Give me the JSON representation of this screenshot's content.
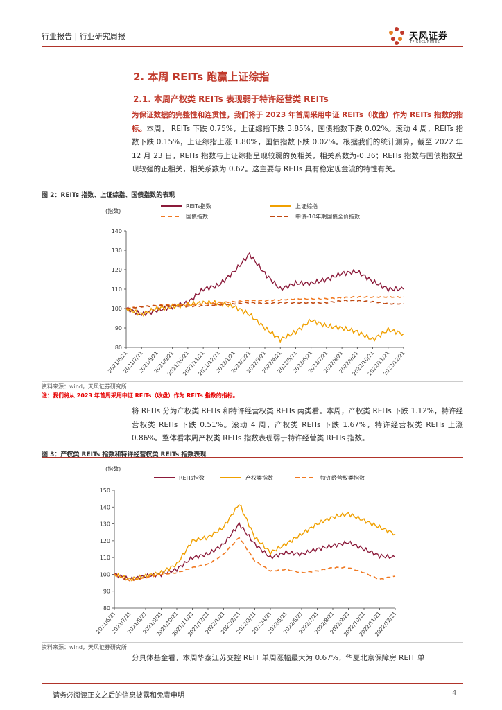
{
  "header": {
    "title": "行业报告 | 行业研究周报",
    "logo_cn": "天风证券",
    "logo_en": "TF SECURITIES"
  },
  "section": {
    "h2": "2. 本周 REITs 跑赢上证综指",
    "h3": "2.1. 本周产权类 REITs 表现弱于特许经营类 REITs"
  },
  "para1": {
    "highlight": "为保证数据的完整性和连贯性，我们将于 2023 年首周采用中证 REITs（收盘）作为 REITs 指数的指标。",
    "rest": "本周， REITs 下跌 0.75%，上证综指下跌 3.85%，国债指数下跌 0.02%。滚动 4 周，REITs 指数下跌 0.15%，上证综指上涨 1.80%，国债指数下跌 0.02%。根据我们的统计测算，截至 2022 年 12 月 23 日，REITs 指数与上证综指呈现较弱的负相关，相关系数为-0.36；REITs 指数与国债指数呈现较强的正相关，相关系数为 0.62。这主要与 REITs 具有稳定现金流的特性有关。"
  },
  "fig2": {
    "title": "图 2：REITs 指数、上证综指、国债指数的表现",
    "source": "资料来源：wind，天风证券研究所",
    "note": "注：我们将从 2023 年首周采用中证 REITs（收盘）作为 REITs 指数的指标。"
  },
  "para2": "将 REITs 分为产权类 REITs 和特许经营权类 REITs 两类看。本周，产权类 REITs 下跌 1.12%，特许经营权类 REITs 下跌 0.51%。滚动 4 周，产权类 REITs 下跌 1.67%，特许经营权类 REITs 上涨 0.86%。整体看本周产权类 REITs 指数表现弱于特许经营类 REITs 指数。",
  "fig3": {
    "title": "图 3：产权类 REITs 指数和特许经营权类 REITs 指数表现",
    "source": "资料来源：wind，天风证券研究所"
  },
  "para3": "分具体基金看，本周华泰江苏交控 REIT 单周涨幅最大为 0.67%，华夏北京保障房 REIT 单",
  "footer": {
    "disclaimer": "请务必阅读正文之后的信息披露和免责申明",
    "page": "4"
  },
  "colors": {
    "accent": "#c0392b",
    "reits": "#8b1a3a",
    "sse": "#f0a000",
    "bond": "#f07820",
    "cbond": "#c04810"
  },
  "chart_data": [
    {
      "type": "line",
      "ylabel": "(指数)",
      "ylim": [
        80,
        140
      ],
      "yticks": [
        80,
        90,
        100,
        110,
        120,
        130,
        140
      ],
      "categories": [
        "2021/6/21",
        "2021/7/21",
        "2021/8/21",
        "2021/9/21",
        "2021/10/21",
        "2021/11/21",
        "2021/12/21",
        "2022/1/21",
        "2022/2/21",
        "2022/3/21",
        "2022/4/21",
        "2022/5/21",
        "2022/6/21",
        "2022/7/21",
        "2022/8/21",
        "2022/9/21",
        "2022/10/21",
        "2022/11/21",
        "2022/12/21"
      ],
      "series": [
        {
          "name": "REITs指数",
          "style": "solid",
          "color": "#8b1a3a",
          "values": [
            100,
            97,
            99,
            101,
            103,
            110,
            112,
            119,
            128,
            118,
            110,
            113,
            113,
            115,
            118,
            119,
            114,
            110,
            110
          ]
        },
        {
          "name": "上证综指",
          "style": "solid",
          "color": "#f0a000",
          "values": [
            100,
            97,
            100,
            101,
            102,
            103,
            103,
            101,
            97,
            90,
            84,
            88,
            94,
            91,
            90,
            88,
            84,
            89,
            87
          ]
        },
        {
          "name": "国债指数",
          "style": "dashed",
          "color": "#f07820",
          "values": [
            100,
            101,
            101.5,
            102,
            102,
            102.5,
            103,
            103.5,
            104,
            104,
            104.5,
            105,
            105,
            105,
            105.5,
            106,
            106,
            106,
            106
          ]
        },
        {
          "name": "中债-10年期国债全价指数",
          "style": "dashed",
          "color": "#c04810",
          "values": [
            100,
            101,
            101.5,
            101.5,
            101,
            101.5,
            102,
            102.5,
            103,
            102.5,
            103,
            103,
            103,
            103,
            104,
            104,
            103.5,
            102.5,
            102.5
          ]
        }
      ]
    },
    {
      "type": "line",
      "ylabel": "(指数)",
      "ylim": [
        80,
        150
      ],
      "yticks": [
        80,
        90,
        100,
        110,
        120,
        130,
        140,
        150
      ],
      "categories": [
        "2021/6/21",
        "2021/7/21",
        "2021/8/21",
        "2021/9/21",
        "2021/10/21",
        "2021/11/21",
        "2021/12/21",
        "2022/1/21",
        "2022/2/21",
        "2022/3/21",
        "2022/4/21",
        "2022/5/21",
        "2022/6/21",
        "2022/7/21",
        "2022/8/21",
        "2022/9/21",
        "2022/10/21",
        "2022/11/21",
        "2022/12/21"
      ],
      "series": [
        {
          "name": "REITs指数",
          "style": "solid",
          "color": "#8b1a3a",
          "values": [
            100,
            97,
            99,
            100,
            103,
            110,
            112,
            118,
            130,
            118,
            110,
            113,
            112,
            115,
            117,
            119,
            115,
            111,
            110
          ]
        },
        {
          "name": "产权类指数",
          "style": "solid",
          "color": "#f0a000",
          "values": [
            100,
            97,
            99,
            101,
            106,
            120,
            122,
            128,
            142,
            122,
            113,
            118,
            124,
            130,
            134,
            136,
            132,
            128,
            124
          ]
        },
        {
          "name": "特许经营权类指数",
          "style": "dashed",
          "color": "#f07820",
          "values": [
            100,
            96,
            98,
            100,
            101,
            104,
            106,
            112,
            122,
            108,
            102,
            103,
            101,
            102,
            104,
            104,
            101,
            97,
            99
          ]
        }
      ]
    }
  ]
}
